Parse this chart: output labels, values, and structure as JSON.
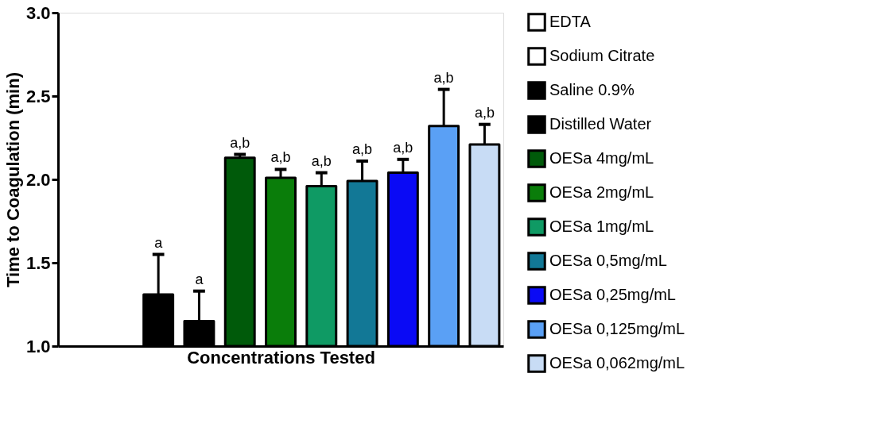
{
  "chart_data": {
    "type": "bar",
    "xlabel": "Concentrations Tested",
    "ylabel": "Time to Coagulation (min)",
    "categories": [
      null,
      null,
      null,
      null,
      null,
      null,
      null,
      null,
      null,
      null,
      null
    ],
    "series": [
      {
        "name": "EDTA",
        "color": "#ffffff",
        "values": [
          1.0,
          null,
          null,
          null,
          null,
          null,
          null,
          null,
          null,
          null,
          null
        ]
      },
      {
        "name": "Sodium Citrate",
        "color": "#ffffff",
        "values": [
          null,
          1.0,
          null,
          null,
          null,
          null,
          null,
          null,
          null,
          null,
          null
        ]
      },
      {
        "name": "Saline 0.9%",
        "color": "#000000",
        "values": [
          null,
          null,
          1.31,
          null,
          null,
          null,
          null,
          null,
          null,
          null,
          null
        ],
        "errors": [
          null,
          null,
          [
            1.31,
            1.55
          ],
          null,
          null,
          null,
          null,
          null,
          null,
          null,
          null
        ],
        "value_labels": [
          null,
          null,
          "a",
          null,
          null,
          null,
          null,
          null,
          null,
          null,
          null
        ]
      },
      {
        "name": "Distilled Water",
        "color": "#000000",
        "values": [
          null,
          null,
          null,
          1.15,
          null,
          null,
          null,
          null,
          null,
          null,
          null
        ],
        "errors": [
          null,
          null,
          null,
          [
            1.15,
            1.33
          ],
          null,
          null,
          null,
          null,
          null,
          null,
          null
        ],
        "value_labels": [
          null,
          null,
          null,
          "a",
          null,
          null,
          null,
          null,
          null,
          null,
          null
        ]
      },
      {
        "name": "OESa 4mg/mL",
        "color": "#005a0a",
        "values": [
          null,
          null,
          null,
          null,
          2.13,
          null,
          null,
          null,
          null,
          null,
          null
        ],
        "errors": [
          null,
          null,
          null,
          null,
          [
            2.13,
            2.15
          ],
          null,
          null,
          null,
          null,
          null,
          null
        ],
        "value_labels": [
          null,
          null,
          null,
          null,
          "a,b",
          null,
          null,
          null,
          null,
          null,
          null
        ]
      },
      {
        "name": "OESa 2mg/mL",
        "color": "#0a7d0a",
        "values": [
          null,
          null,
          null,
          null,
          null,
          2.01,
          null,
          null,
          null,
          null,
          null
        ],
        "errors": [
          null,
          null,
          null,
          null,
          null,
          [
            2.01,
            2.06
          ],
          null,
          null,
          null,
          null,
          null
        ],
        "value_labels": [
          null,
          null,
          null,
          null,
          null,
          "a,b",
          null,
          null,
          null,
          null,
          null
        ]
      },
      {
        "name": "OESa 1mg/mL",
        "color": "#0f9a64",
        "values": [
          null,
          null,
          null,
          null,
          null,
          null,
          1.96,
          null,
          null,
          null,
          null
        ],
        "errors": [
          null,
          null,
          null,
          null,
          null,
          null,
          [
            1.96,
            2.04
          ],
          null,
          null,
          null,
          null
        ],
        "value_labels": [
          null,
          null,
          null,
          null,
          null,
          null,
          "a,b",
          null,
          null,
          null,
          null
        ]
      },
      {
        "name": "OESa 0,5mg/mL",
        "color": "#127896",
        "values": [
          null,
          null,
          null,
          null,
          null,
          null,
          null,
          1.99,
          null,
          null,
          null
        ],
        "errors": [
          null,
          null,
          null,
          null,
          null,
          null,
          null,
          [
            1.99,
            2.11
          ],
          null,
          null,
          null
        ],
        "value_labels": [
          null,
          null,
          null,
          null,
          null,
          null,
          null,
          "a,b",
          null,
          null,
          null
        ]
      },
      {
        "name": "OESa 0,25mg/mL",
        "color": "#0a0af5",
        "values": [
          null,
          null,
          null,
          null,
          null,
          null,
          null,
          null,
          2.04,
          null,
          null
        ],
        "errors": [
          null,
          null,
          null,
          null,
          null,
          null,
          null,
          null,
          [
            2.04,
            2.12
          ],
          null,
          null
        ],
        "value_labels": [
          null,
          null,
          null,
          null,
          null,
          null,
          null,
          null,
          "a,b",
          null,
          null
        ]
      },
      {
        "name": "OESa 0,125mg/mL",
        "color": "#5aa0f5",
        "values": [
          null,
          null,
          null,
          null,
          null,
          null,
          null,
          null,
          null,
          2.32,
          null
        ],
        "errors": [
          null,
          null,
          null,
          null,
          null,
          null,
          null,
          null,
          null,
          [
            2.32,
            2.54
          ],
          null
        ],
        "value_labels": [
          null,
          null,
          null,
          null,
          null,
          null,
          null,
          null,
          null,
          "a,b",
          null
        ]
      },
      {
        "name": "OESa 0,062mg/mL",
        "color": "#c8dcf5",
        "values": [
          null,
          null,
          null,
          null,
          null,
          null,
          null,
          null,
          null,
          null,
          2.21
        ],
        "errors": [
          null,
          null,
          null,
          null,
          null,
          null,
          null,
          null,
          null,
          null,
          [
            2.21,
            2.33
          ]
        ],
        "value_labels": [
          null,
          null,
          null,
          null,
          null,
          null,
          null,
          null,
          null,
          null,
          "a,b"
        ]
      }
    ],
    "ylim": [
      1.0,
      3.0
    ],
    "yticks": [
      {
        "value": 1.0,
        "label": "1.0"
      },
      1.5,
      {
        "value": 2.0,
        "label": "2.0"
      },
      2.5,
      {
        "value": 3.0,
        "label": "3.0"
      }
    ],
    "tick_labels": "y",
    "grid": false,
    "legend": "right"
  }
}
